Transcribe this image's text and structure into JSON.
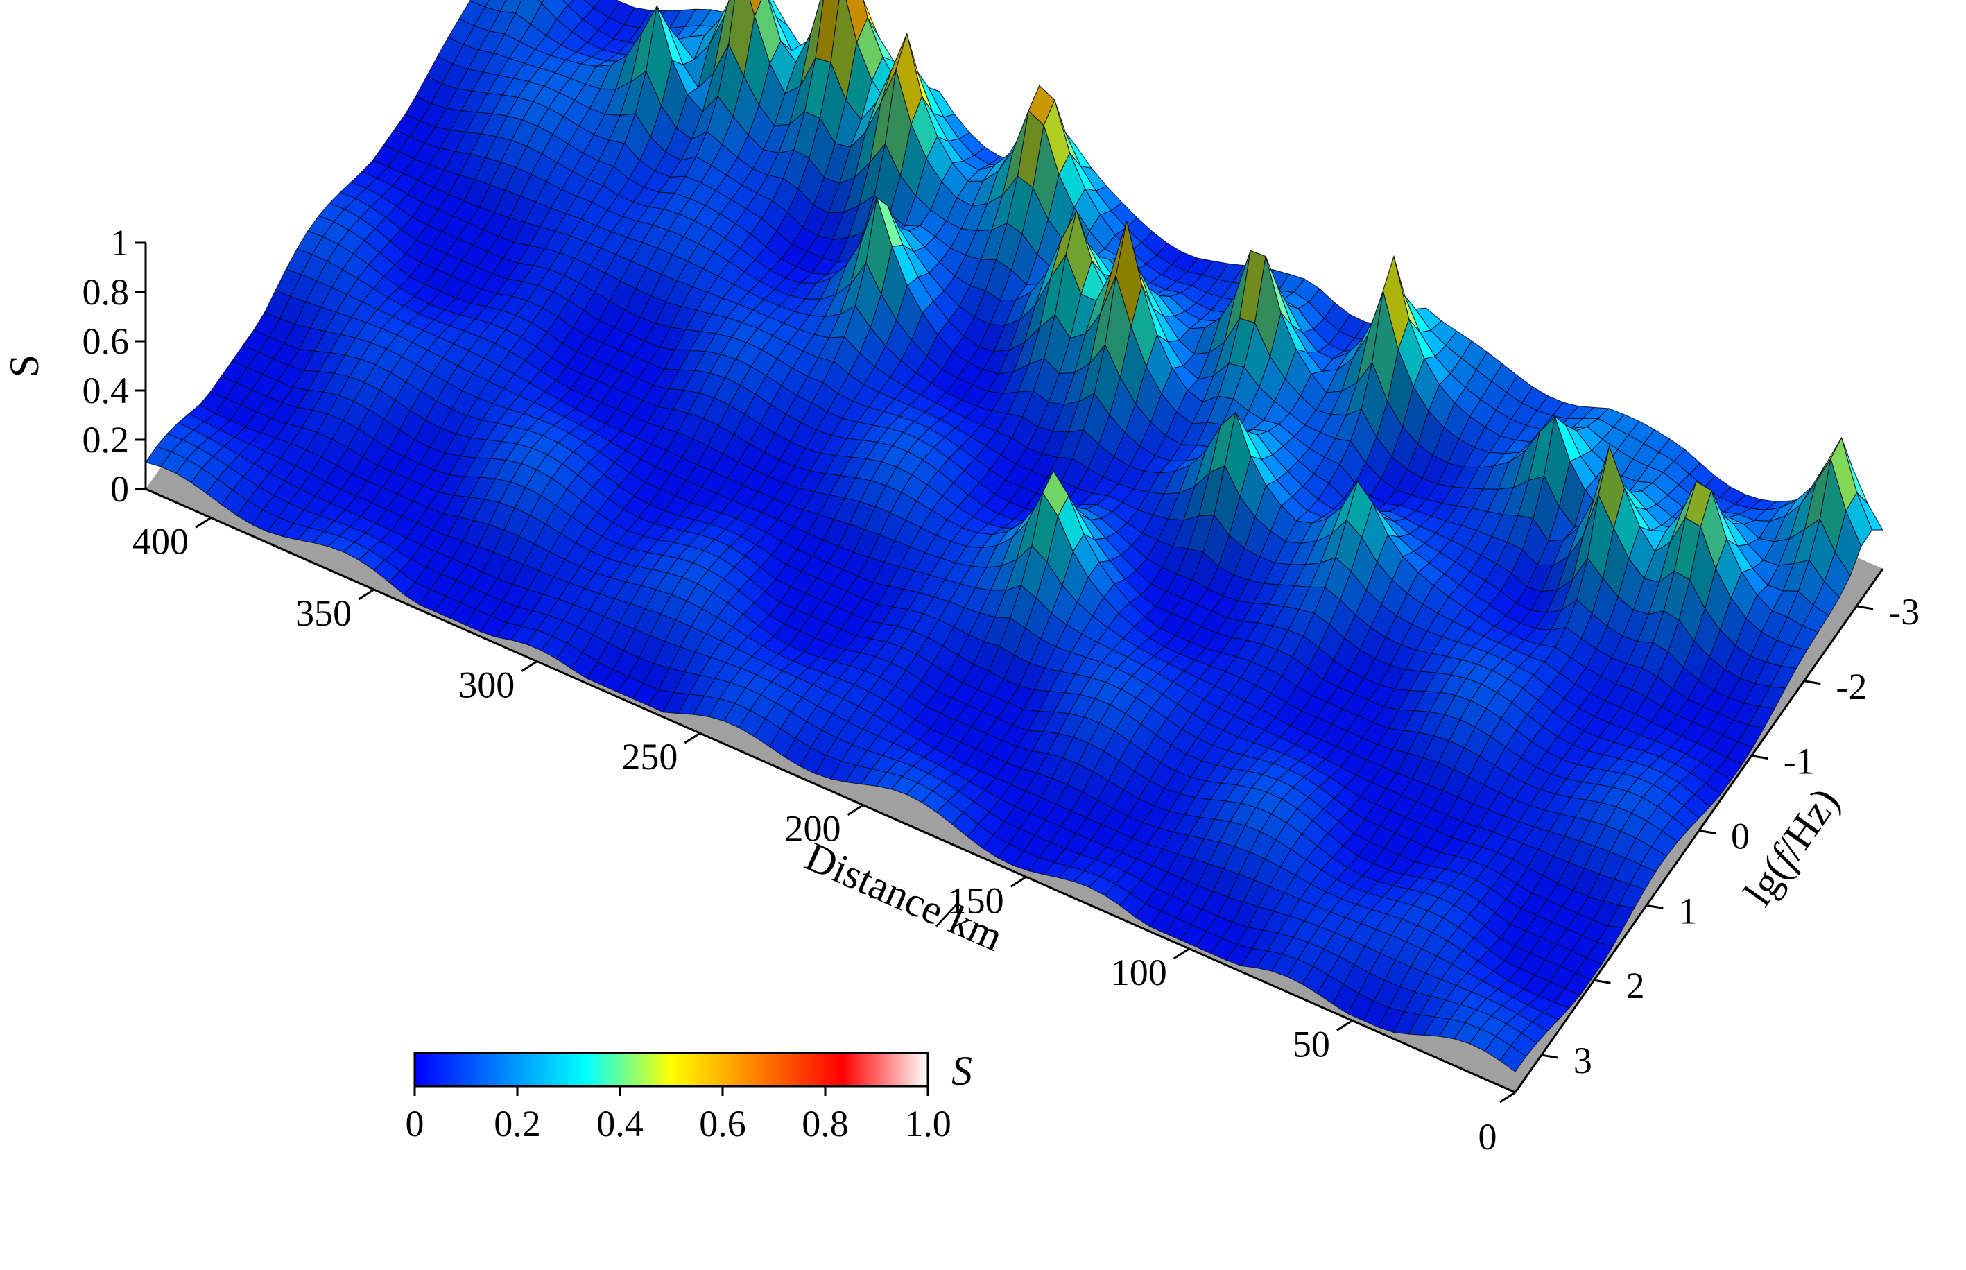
{
  "chart_data": {
    "type": "surface3d",
    "title": "",
    "z_axis": {
      "label": "S",
      "range": [
        0,
        1
      ],
      "ticks": [
        "0",
        "0.2",
        "0.4",
        "0.6",
        "0.8",
        "1"
      ]
    },
    "distance_axis": {
      "label": "Distance/km",
      "range": [
        0,
        420
      ],
      "ticks": [
        "0",
        "50",
        "100",
        "150",
        "200",
        "250",
        "300",
        "350",
        "400"
      ]
    },
    "frequency_axis": {
      "label_prefix": "lg(",
      "label_var": "f",
      "label_suffix": "/Hz)",
      "range": [
        3.5,
        -3.5
      ],
      "ticks": [
        "3",
        "2",
        "1",
        "0",
        "-1",
        "-2",
        "-3"
      ]
    },
    "colorbar": {
      "label": "S",
      "range": [
        0,
        1
      ],
      "ticks": [
        "0",
        "0.2",
        "0.4",
        "0.6",
        "0.8",
        "1.0"
      ],
      "colormap": [
        "#0000ff",
        "#0080ff",
        "#00ffff",
        "#ffff00",
        "#ff8000",
        "#ff0000",
        "#ffffff"
      ]
    },
    "series_description_peaks": [
      {
        "distance_km": 405,
        "log_f": -3.0,
        "S": 0.15
      },
      {
        "distance_km": 360,
        "log_f": -2.5,
        "S": 0.55
      },
      {
        "distance_km": 340,
        "log_f": -3.0,
        "S": 0.88
      },
      {
        "distance_km": 315,
        "log_f": -3.2,
        "S": 1.0
      },
      {
        "distance_km": 290,
        "log_f": -2.8,
        "S": 0.75
      },
      {
        "distance_km": 275,
        "log_f": -1.5,
        "S": 0.58
      },
      {
        "distance_km": 250,
        "log_f": -3.0,
        "S": 0.78
      },
      {
        "distance_km": 225,
        "log_f": -2.0,
        "S": 0.62
      },
      {
        "distance_km": 205,
        "log_f": -1.8,
        "S": 0.72
      },
      {
        "distance_km": 190,
        "log_f": 0.5,
        "S": 0.55
      },
      {
        "distance_km": 175,
        "log_f": -2.5,
        "S": 0.72
      },
      {
        "distance_km": 160,
        "log_f": -1.0,
        "S": 0.48
      },
      {
        "distance_km": 140,
        "log_f": -2.8,
        "S": 0.72
      },
      {
        "distance_km": 120,
        "log_f": -1.0,
        "S": 0.4
      },
      {
        "distance_km": 85,
        "log_f": -2.5,
        "S": 0.45
      },
      {
        "distance_km": 60,
        "log_f": -2.0,
        "S": 0.68
      },
      {
        "distance_km": 35,
        "log_f": -2.2,
        "S": 0.6
      },
      {
        "distance_km": 10,
        "log_f": -3.2,
        "S": 0.62
      }
    ]
  }
}
